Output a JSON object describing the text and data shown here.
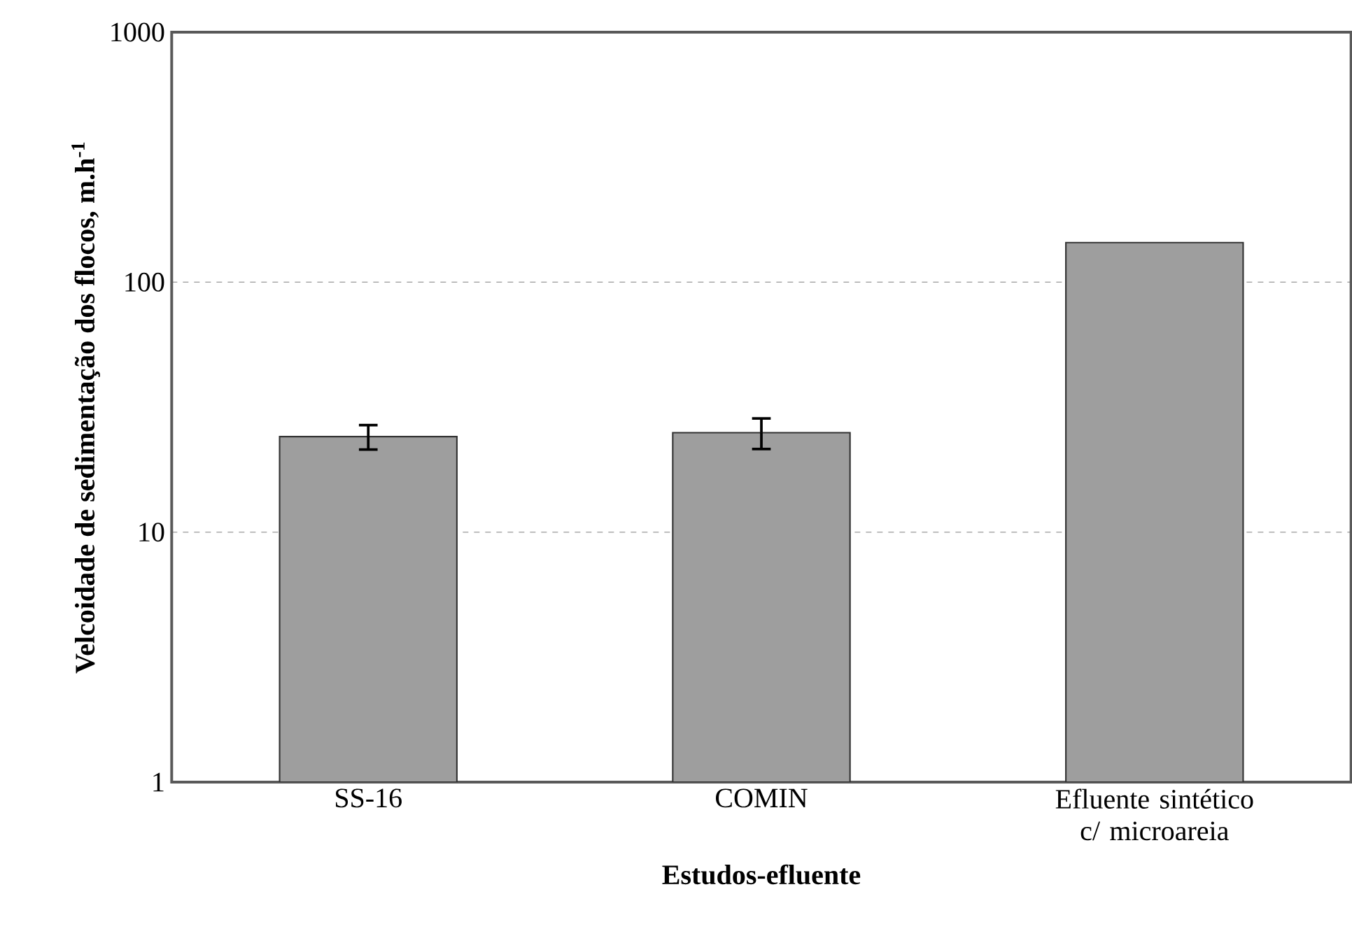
{
  "chart_data": {
    "type": "bar",
    "xlabel": "Estudos-efluente",
    "ylabel": "Velcoidade de sedimentação dos flocos, m.h$^{-1}$",
    "categories": [
      "SS-16",
      "COMIN",
      "Efluente sintético c/ microareia"
    ],
    "values": [
      24.1,
      25.0,
      144
    ],
    "errors": [
      2.7,
      3.5,
      null
    ],
    "color": "#9e9e9e",
    "log": "y",
    "ylim": [
      1,
      1000
    ],
    "yticks": [
      1,
      10,
      100,
      1000
    ],
    "grid": "y"
  }
}
